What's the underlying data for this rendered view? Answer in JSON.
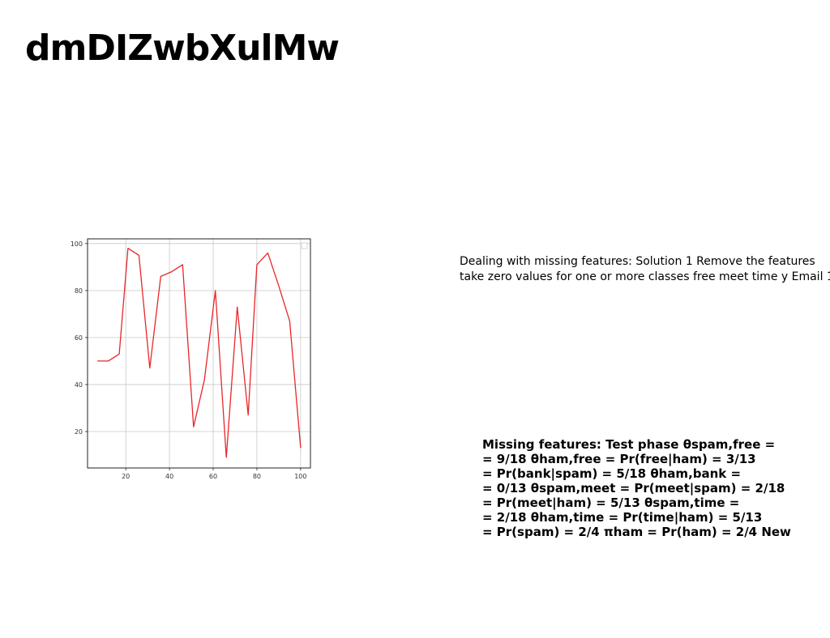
{
  "slide": {
    "title": "dmDIZwbXulMw",
    "paragraph1": [
      "Dealing with missing features: Solution 1 Remove the features",
      "take zero values for one or more classes free meet time y Email 1"
    ],
    "paragraph2": [
      "Missing features: Test phase θspam,free =",
      "= 9/18 θham,free = Pr(free|ham) = 3/13",
      "= Pr(bank|spam) = 5/18 θham,bank =",
      "= 0/13 θspam,meet = Pr(meet|spam) = 2/18",
      "= Pr(meet|ham) = 5/13 θspam,time =",
      "= 2/18 θham,time = Pr(time|ham) = 5/13",
      "= Pr(spam) = 2/4 πham = Pr(ham) = 2/4 New"
    ]
  },
  "chart_data": {
    "type": "line",
    "x": [
      7,
      12,
      17,
      21,
      26,
      31,
      36,
      41,
      46,
      51,
      56,
      61,
      66,
      71,
      76,
      80,
      85,
      90,
      95,
      100
    ],
    "values": [
      50,
      50,
      53,
      98,
      95,
      47,
      86,
      88,
      91,
      22,
      42,
      80,
      9,
      73,
      27,
      91,
      96,
      82,
      67,
      13
    ],
    "xticks": [
      "20",
      "40",
      "60",
      "80",
      "100"
    ],
    "yticks": [
      "20",
      "40",
      "60",
      "80",
      "100"
    ],
    "xlim": [
      2.5,
      104.5
    ],
    "ylim": [
      4.5,
      102
    ],
    "grid": true,
    "line_color": "#e8262a",
    "title": "",
    "xlabel": "",
    "ylabel": ""
  }
}
